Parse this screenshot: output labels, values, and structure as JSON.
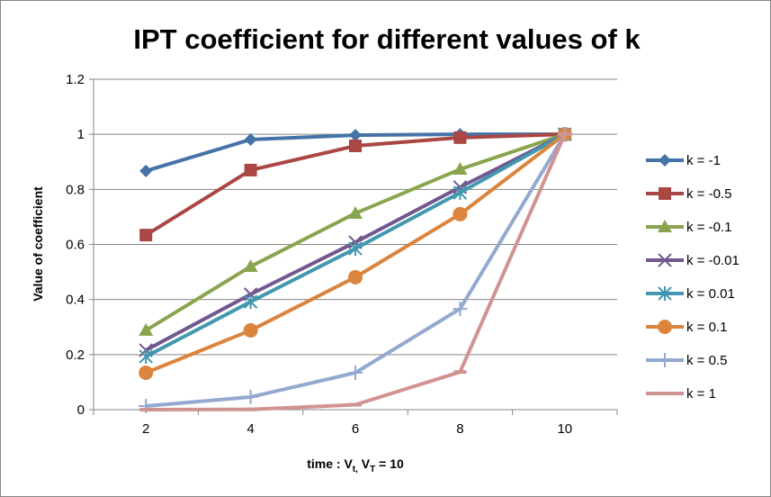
{
  "chart_data": {
    "type": "line",
    "title": "IPT coefficient for different  values of k",
    "xlabel": "time : V",
    "xlabel_sub1": "t,",
    "xlabel_mid": " V",
    "xlabel_sub2": "T",
    "xlabel_end": " = 10",
    "ylabel": "Value of coefficient",
    "categories": [
      "2",
      "4",
      "6",
      "8",
      "10"
    ],
    "yticks": [
      "0",
      "0.2",
      "0.4",
      "0.6",
      "0.8",
      "1",
      "1.2"
    ],
    "ylim": [
      0,
      1.2
    ],
    "grid": true,
    "legend_position": "right",
    "series": [
      {
        "name": "k = -1",
        "color": "#4572A7",
        "marker": "diamond",
        "values": [
          0.867,
          0.981,
          0.997,
          1.0,
          1.0
        ]
      },
      {
        "name": "k = -0.5",
        "color": "#AA4643",
        "marker": "square",
        "values": [
          0.634,
          0.87,
          0.958,
          0.988,
          1.0
        ]
      },
      {
        "name": "k = -0.1",
        "color": "#89A54E",
        "marker": "triangle",
        "values": [
          0.288,
          0.52,
          0.713,
          0.873,
          1.0
        ]
      },
      {
        "name": "k = -0.01",
        "color": "#71588F",
        "marker": "x",
        "values": [
          0.216,
          0.419,
          0.608,
          0.808,
          1.0
        ]
      },
      {
        "name": "k = 0.01",
        "color": "#4198AF",
        "marker": "star",
        "values": [
          0.193,
          0.392,
          0.585,
          0.788,
          1.0
        ]
      },
      {
        "name": "k = 0.1",
        "color": "#DB843D",
        "marker": "circle",
        "values": [
          0.134,
          0.288,
          0.481,
          0.71,
          1.0
        ]
      },
      {
        "name": "k = 0.5",
        "color": "#93A9CF",
        "marker": "plus",
        "values": [
          0.013,
          0.046,
          0.134,
          0.366,
          1.0
        ]
      },
      {
        "name": "k = 1",
        "color": "#D19392",
        "marker": "dash",
        "values": [
          0.0,
          0.001,
          0.018,
          0.137,
          1.0
        ]
      }
    ]
  }
}
